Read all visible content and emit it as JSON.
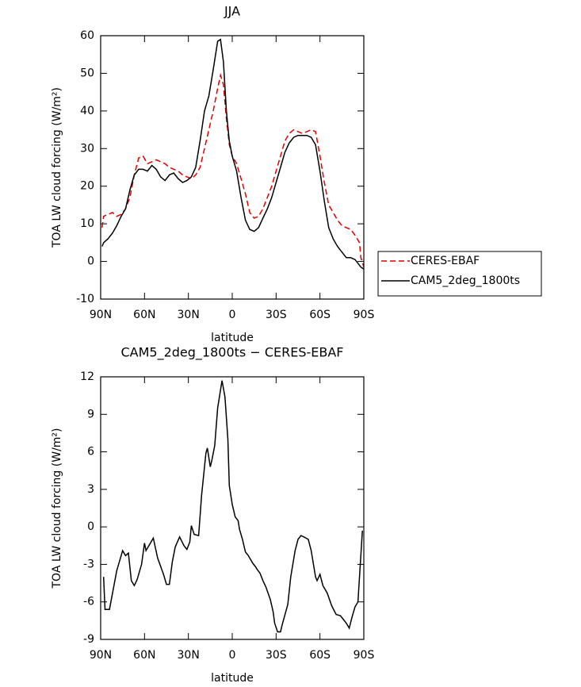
{
  "chart_data": [
    {
      "type": "line",
      "title": "JJA",
      "x_label": "latitude",
      "y_label": "TOA LW cloud forcing (W/m²)",
      "xlim": [
        90,
        -90
      ],
      "xticks": [
        {
          "value": 90,
          "label": "90N"
        },
        {
          "value": 60,
          "label": "60N"
        },
        {
          "value": 30,
          "label": "30N"
        },
        0,
        {
          "value": -30,
          "label": "30S"
        },
        {
          "value": -60,
          "label": "60S"
        },
        {
          "value": -90,
          "label": "90S"
        }
      ],
      "ylim": [
        -10,
        60
      ],
      "yticks": [
        -10,
        0,
        10,
        20,
        30,
        40,
        50,
        60
      ],
      "legend": "right",
      "x": [
        89,
        88,
        85,
        82,
        79,
        76,
        73,
        70,
        67,
        64,
        61,
        58,
        55,
        52,
        49,
        46,
        43,
        40,
        37,
        34,
        31,
        28,
        25,
        22,
        19,
        16,
        13,
        10,
        8,
        6,
        4,
        2,
        0,
        -3,
        -6,
        -9,
        -12,
        -15,
        -18,
        -21,
        -24,
        -27,
        -30,
        -33,
        -36,
        -39,
        -42,
        -45,
        -48,
        -51,
        -54,
        -57,
        -60,
        -63,
        -66,
        -69,
        -72,
        -75,
        -78,
        -81,
        -84,
        -87,
        -88,
        -90
      ],
      "series": [
        {
          "name": "CERES-EBAF",
          "color": "#e00000",
          "line_style": "dashed",
          "values": [
            9,
            12,
            12.5,
            13,
            12,
            12.5,
            14,
            17,
            23,
            27.5,
            28,
            26,
            26.5,
            27,
            26.5,
            26,
            25,
            24.5,
            24,
            23,
            22.5,
            22,
            23,
            25,
            30,
            35,
            40,
            46,
            49.5,
            47,
            38,
            31,
            28,
            26,
            22,
            18,
            13,
            11.5,
            12,
            14,
            17,
            20,
            24,
            28,
            32,
            34,
            35,
            34.5,
            34,
            34.5,
            35,
            34.5,
            28,
            21,
            15,
            13,
            11,
            9.5,
            9,
            8.5,
            7,
            5,
            1,
            -1.5
          ]
        },
        {
          "name": "CAM5_2deg_1800ts",
          "color": "#000000",
          "line_style": "solid",
          "values": [
            4,
            5,
            6,
            7.5,
            9.5,
            12,
            14,
            19,
            23,
            24.5,
            24.5,
            24,
            25.5,
            24.5,
            22.5,
            21.5,
            23,
            23.5,
            22,
            21,
            21.5,
            22.5,
            25,
            32,
            40,
            44,
            51,
            58.5,
            59,
            53,
            40,
            32,
            28,
            24,
            17,
            11,
            8.5,
            8,
            9,
            11.5,
            14,
            17,
            21,
            25,
            29,
            31.5,
            33,
            33.5,
            33.5,
            33.5,
            33,
            31,
            24,
            16,
            9,
            6,
            4,
            2.5,
            1,
            1,
            0.5,
            -1,
            -1.5,
            -2
          ]
        }
      ]
    },
    {
      "type": "line",
      "title": "CAM5_2deg_1800ts − CERES-EBAF",
      "x_label": "latitude",
      "y_label": "TOA LW cloud forcing (W/m²)",
      "xlim": [
        90,
        -90
      ],
      "xticks": [
        {
          "value": 90,
          "label": "90N"
        },
        {
          "value": 60,
          "label": "60N"
        },
        {
          "value": 30,
          "label": "30N"
        },
        0,
        {
          "value": -30,
          "label": "30S"
        },
        {
          "value": -60,
          "label": "60S"
        },
        {
          "value": -90,
          "label": "90S"
        }
      ],
      "ylim": [
        -9,
        12
      ],
      "yticks": [
        -9,
        -6,
        -3,
        0,
        3,
        6,
        9,
        12
      ],
      "x": [
        88,
        87,
        84,
        79,
        75,
        73,
        71,
        69,
        67,
        65,
        62,
        60,
        59,
        57,
        54,
        51,
        47,
        45,
        43,
        41,
        39,
        36,
        33,
        31,
        29,
        28,
        26,
        23,
        21,
        18,
        17,
        15,
        14,
        12,
        10,
        7,
        5,
        3,
        2,
        0,
        -2,
        -4,
        -5,
        -7,
        -9,
        -11,
        -14,
        -16,
        -17,
        -19,
        -21,
        -23,
        -26,
        -28,
        -29,
        -31,
        -33,
        -34,
        -38,
        -40,
        -43,
        -45,
        -47,
        -49,
        -52,
        -54,
        -57,
        -58,
        -60,
        -62,
        -65,
        -68,
        -71,
        -74,
        -78,
        -80,
        -82,
        -84,
        -86,
        -89
      ],
      "series": [
        {
          "name": "CAM5_2deg_1800ts − CERES-EBAF",
          "color": "#000000",
          "line_style": "solid",
          "values": [
            -4,
            -6.6,
            -6.6,
            -3.5,
            -1.9,
            -2.3,
            -2.1,
            -4.3,
            -4.7,
            -4.2,
            -3,
            -1.3,
            -1.9,
            -1.5,
            -0.9,
            -2.5,
            -3.8,
            -4.6,
            -4.6,
            -2.8,
            -1.6,
            -0.8,
            -1.5,
            -1.8,
            -1.2,
            0.1,
            -0.6,
            -0.7,
            2.5,
            5.9,
            6.3,
            4.8,
            5.3,
            6.5,
            9.5,
            11.7,
            10.4,
            7,
            3.3,
            1.8,
            0.8,
            0.5,
            -0.2,
            -1,
            -2,
            -2.3,
            -2.9,
            -3.2,
            -3.4,
            -3.7,
            -4.3,
            -4.8,
            -5.8,
            -6.8,
            -7.7,
            -8.4,
            -8.4,
            -7.9,
            -6.2,
            -4,
            -1.9,
            -1,
            -0.7,
            -0.8,
            -1,
            -1.9,
            -4,
            -4.3,
            -3.8,
            -4.7,
            -5.3,
            -6.3,
            -7,
            -7.1,
            -7.7,
            -8.1,
            -7.2,
            -6.4,
            -6,
            -0.3
          ]
        }
      ]
    }
  ]
}
